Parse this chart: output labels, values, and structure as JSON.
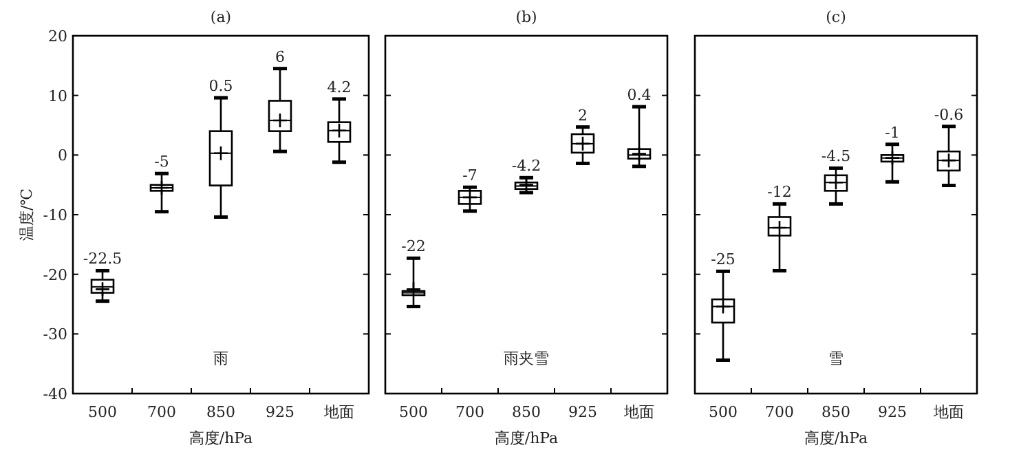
{
  "chart_data": [
    {
      "type": "box",
      "title": "(a)",
      "xlabel": "高度/hPa",
      "ylabel": "温度/℃",
      "categories": [
        "500",
        "700",
        "850",
        "925",
        "地面"
      ],
      "ylim": [
        -40,
        20
      ],
      "yticks": [
        -40,
        -30,
        -20,
        -10,
        0,
        10,
        20
      ],
      "boxes": [
        {
          "low": -24.5,
          "q1": -23.1,
          "median": -22.1,
          "q3": -20.9,
          "high": -19.4,
          "mean": -22.5
        },
        {
          "low": -9.5,
          "q1": -6,
          "median": -5.5,
          "q3": -5,
          "high": -3.1,
          "mean": -5.5
        },
        {
          "low": -10.4,
          "q1": -5.1,
          "median": 0.3,
          "q3": 4,
          "high": 9.6,
          "mean": 0.3
        },
        {
          "low": 0.6,
          "q1": 4,
          "median": 5.8,
          "q3": 9.1,
          "high": 14.5,
          "mean": 5.8
        },
        {
          "low": -1.2,
          "q1": 2.2,
          "median": 4.1,
          "q3": 5.5,
          "high": 9.4,
          "mean": 4.1
        }
      ],
      "annotations": [
        {
          "text": "-22.5",
          "x": "500",
          "y": -19.4
        },
        {
          "text": "-5",
          "x": "700",
          "y": -3.1
        },
        {
          "text": "0.5",
          "x": "850",
          "y": 9.6
        },
        {
          "text": "6",
          "x": "925",
          "y": 14.5
        },
        {
          "text": "4.2",
          "x": "地面",
          "y": 9.4
        },
        "雨"
      ]
    },
    {
      "type": "box",
      "title": "(b)",
      "xlabel": "高度/hPa",
      "categories": [
        "500",
        "700",
        "850",
        "925",
        "地面"
      ],
      "ylim": [
        -40,
        20
      ],
      "yticks": [
        -40,
        -30,
        -20,
        -10,
        0,
        10,
        20
      ],
      "tick_labels": "x",
      "boxes": [
        {
          "low": -25.4,
          "q1": -23.5,
          "median": -23.1,
          "q3": -22.8,
          "high": -17.3,
          "mean": -22.5
        },
        {
          "low": -9.4,
          "q1": -8.2,
          "median": -7.1,
          "q3": -6,
          "high": -5.4,
          "mean": -7.1
        },
        {
          "low": -6.3,
          "q1": -5.7,
          "median": -5.2,
          "q3": -4.6,
          "high": -3.8,
          "mean": -5
        },
        {
          "low": -1.4,
          "q1": 0.4,
          "median": 1.9,
          "q3": 3.5,
          "high": 4.7,
          "mean": 1.9
        },
        {
          "low": -1.9,
          "q1": -0.6,
          "median": 0,
          "q3": 1,
          "high": 8.1,
          "mean": 0.2
        }
      ],
      "annotations": [
        {
          "text": "-22",
          "x": "500",
          "y": -17.3
        },
        {
          "text": "-7",
          "x": "700",
          "y": -5.4
        },
        {
          "text": "-4.2",
          "x": "850",
          "y": -3.8
        },
        {
          "text": "2",
          "x": "925",
          "y": 4.7
        },
        {
          "text": "0.4",
          "x": "地面",
          "y": 8.1
        },
        "雨夹雪"
      ]
    },
    {
      "type": "box",
      "title": "(c)",
      "xlabel": "高度/hPa",
      "categories": [
        "500",
        "700",
        "850",
        "925",
        "地面"
      ],
      "ylim": [
        -40,
        20
      ],
      "yticks": [
        -40,
        -30,
        -20,
        -10,
        0,
        10,
        20
      ],
      "tick_labels": "x",
      "boxes": [
        {
          "low": -34.4,
          "q1": -28.1,
          "median": -25.4,
          "q3": -24.2,
          "high": -19.5,
          "mean": -25.4
        },
        {
          "low": -19.4,
          "q1": -13.5,
          "median": -12.2,
          "q3": -10.4,
          "high": -8.2,
          "mean": -12.2
        },
        {
          "low": -8.2,
          "q1": -6,
          "median": -4.6,
          "q3": -3.4,
          "high": -2.2,
          "mean": -4.6
        },
        {
          "low": -4.5,
          "q1": -1.1,
          "median": -0.5,
          "q3": 0,
          "high": 1.8,
          "mean": -0.5
        },
        {
          "low": -5.1,
          "q1": -2.6,
          "median": -0.9,
          "q3": 0.6,
          "high": 4.8,
          "mean": -0.9
        }
      ],
      "annotations": [
        {
          "text": "-25",
          "x": "500",
          "y": -19.5
        },
        {
          "text": "-12",
          "x": "700",
          "y": -8.2
        },
        {
          "text": "-4.5",
          "x": "850",
          "y": -2.2
        },
        {
          "text": "-1",
          "x": "925",
          "y": 1.8
        },
        {
          "text": "-0.6",
          "x": "地面",
          "y": 4.8
        },
        "雪"
      ]
    }
  ]
}
